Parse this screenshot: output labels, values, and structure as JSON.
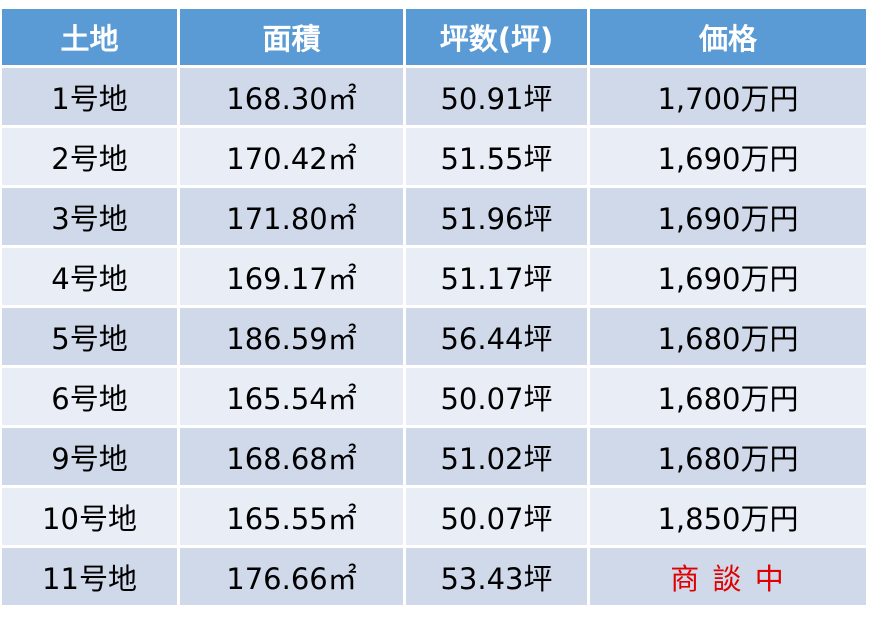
{
  "table": {
    "header": [
      "土地",
      "面積",
      "坪数(坪)",
      "価格"
    ],
    "rows": [
      [
        "1号地",
        "168.30㎡",
        "50.91坪",
        "1,700万円"
      ],
      [
        "2号地",
        "170.42㎡",
        "51.55坪",
        "1,690万円"
      ],
      [
        "3号地",
        "171.80㎡",
        "51.96坪",
        "1,690万円"
      ],
      [
        "4号地",
        "169.17㎡",
        "51.17坪",
        "1,690万円"
      ],
      [
        "5号地",
        "186.59㎡",
        "56.44坪",
        "1,680万円"
      ],
      [
        "6号地",
        "165.54㎡",
        "50.07坪",
        "1,680万円"
      ],
      [
        "9号地",
        "168.68㎡",
        "51.02坪",
        "1,680万円"
      ],
      [
        "10号地",
        "165.55㎡",
        "50.07坪",
        "1,850万円"
      ],
      [
        "11号地",
        "176.66㎡",
        "53.43坪",
        "商 談 中"
      ]
    ]
  }
}
